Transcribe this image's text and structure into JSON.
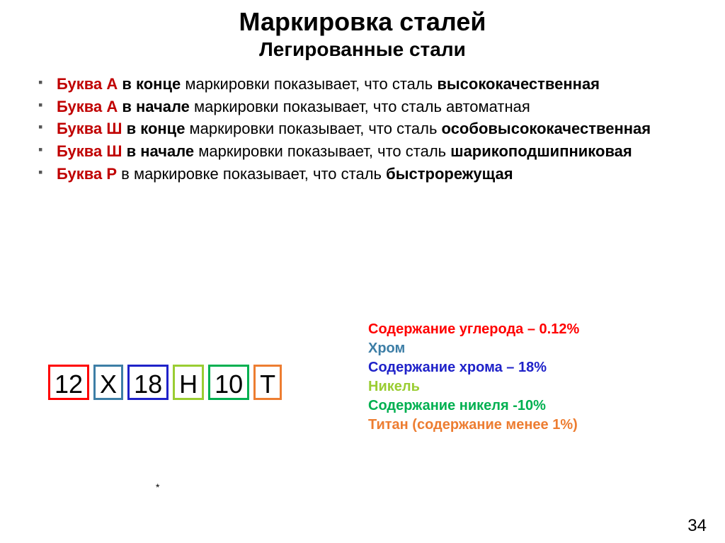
{
  "title": "Маркировка сталей",
  "subtitle": "Легированные стали",
  "bullets": [
    {
      "prefix": "Буква А",
      "mid1": " в конце",
      "plain": " маркировки показывает, что сталь ",
      "bold2": "высококачественная"
    },
    {
      "prefix": "Буква А",
      "mid1": " в начале",
      "plain": " маркировки показывает, что сталь автоматная",
      "bold2": ""
    },
    {
      "prefix": "Буква Ш",
      "mid1": " в конце",
      "plain": " маркировки показывает, что сталь ",
      "bold2": "особовысококачественная"
    },
    {
      "prefix": "Буква Ш",
      "mid1": " в начале",
      "plain": " маркировки показывает, что сталь ",
      "bold2": "шарикоподшипниковая"
    },
    {
      "prefix": "Буква Р",
      "mid1": "",
      "plain": " в маркировке показывает, что сталь ",
      "bold2": "быстрорежущая"
    }
  ],
  "marking": {
    "cells": [
      {
        "text": "12",
        "border": "#ff0000"
      },
      {
        "text": "Х",
        "border": "#3d7ea6"
      },
      {
        "text": "18",
        "border": "#1f22c9"
      },
      {
        "text": "Н",
        "border": "#9acd32"
      },
      {
        "text": "10",
        "border": "#00b050"
      },
      {
        "text": "Т",
        "border": "#ed7d31"
      }
    ]
  },
  "legend": [
    {
      "text": "Содержание углерода – 0.12%",
      "color": "#ff0000"
    },
    {
      "text": "Хром",
      "color": "#3d7ea6"
    },
    {
      "text": "Содержание хрома – 18%",
      "color": "#1f22c9"
    },
    {
      "text": "Никель",
      "color": "#9acd32"
    },
    {
      "text": "Содержание никеля -10%",
      "color": "#00b050"
    },
    {
      "text": "Титан (содержание менее 1%)",
      "color": "#ed7d31"
    }
  ],
  "asterisk": "*",
  "pagenum": "34"
}
